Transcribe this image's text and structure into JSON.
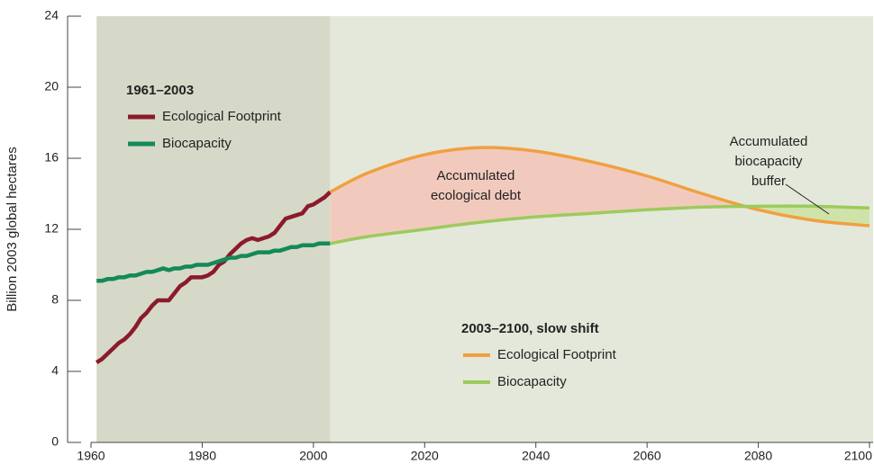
{
  "chart_data": {
    "type": "line",
    "y_label": "Billion 2003 global hectares",
    "xlim": [
      1960,
      2100
    ],
    "xticks": [
      1960,
      1980,
      2000,
      2020,
      2040,
      2060,
      2080,
      2100
    ],
    "ylim": [
      0,
      24
    ],
    "yticks": [
      0,
      4,
      8,
      12,
      16,
      20,
      24
    ],
    "periods": [
      {
        "title": "1961–2003",
        "x": [
          1961,
          1962,
          1963,
          1964,
          1965,
          1966,
          1967,
          1968,
          1969,
          1970,
          1971,
          1972,
          1973,
          1974,
          1975,
          1976,
          1977,
          1978,
          1979,
          1980,
          1981,
          1982,
          1983,
          1984,
          1985,
          1986,
          1987,
          1988,
          1989,
          1990,
          1991,
          1992,
          1993,
          1994,
          1995,
          1996,
          1997,
          1998,
          1999,
          2000,
          2001,
          2002,
          2003
        ],
        "background": "#d6d9c7",
        "series": [
          {
            "name": "Ecological Footprint",
            "color": "#8b1a2e",
            "values": [
              4.5,
              4.7,
              5.0,
              5.3,
              5.6,
              5.8,
              6.1,
              6.5,
              7.0,
              7.3,
              7.7,
              8.0,
              8.0,
              8.0,
              8.4,
              8.8,
              9.0,
              9.3,
              9.3,
              9.3,
              9.4,
              9.6,
              10.0,
              10.2,
              10.6,
              10.9,
              11.2,
              11.4,
              11.5,
              11.4,
              11.5,
              11.6,
              11.8,
              12.2,
              12.6,
              12.7,
              12.8,
              12.9,
              13.3,
              13.4,
              13.6,
              13.8,
              14.1
            ]
          },
          {
            "name": "Biocapacity",
            "color": "#14895a",
            "values": [
              9.1,
              9.1,
              9.2,
              9.2,
              9.3,
              9.3,
              9.4,
              9.4,
              9.5,
              9.6,
              9.6,
              9.7,
              9.8,
              9.7,
              9.8,
              9.8,
              9.9,
              9.9,
              10.0,
              10.0,
              10.0,
              10.1,
              10.2,
              10.3,
              10.4,
              10.4,
              10.5,
              10.5,
              10.6,
              10.7,
              10.7,
              10.7,
              10.8,
              10.8,
              10.9,
              11.0,
              11.0,
              11.1,
              11.1,
              11.1,
              11.2,
              11.2,
              11.2
            ]
          }
        ]
      },
      {
        "title": "2003–2100, slow shift",
        "x": [
          2003,
          2010,
          2020,
          2030,
          2040,
          2050,
          2060,
          2070,
          2080,
          2090,
          2100
        ],
        "background": "#e4e8da",
        "series": [
          {
            "name": "Ecological Footprint",
            "color": "#f0a040",
            "values": [
              14.1,
              15.2,
              16.2,
              16.6,
              16.4,
              15.8,
              15.0,
              14.0,
              13.1,
              12.5,
              12.2
            ]
          },
          {
            "name": "Biocapacity",
            "color": "#9ccb5c",
            "values": [
              11.2,
              11.6,
              12.0,
              12.4,
              12.7,
              12.9,
              13.1,
              13.25,
              13.3,
              13.3,
              13.2
            ]
          }
        ]
      }
    ],
    "annotations": [
      {
        "lines": [
          "Accumulated",
          "ecological debt"
        ],
        "color": "#f2cabd"
      },
      {
        "lines": [
          "Accumulated",
          "biocapacity",
          "buffer"
        ],
        "color": "#cfe3a9"
      }
    ]
  }
}
